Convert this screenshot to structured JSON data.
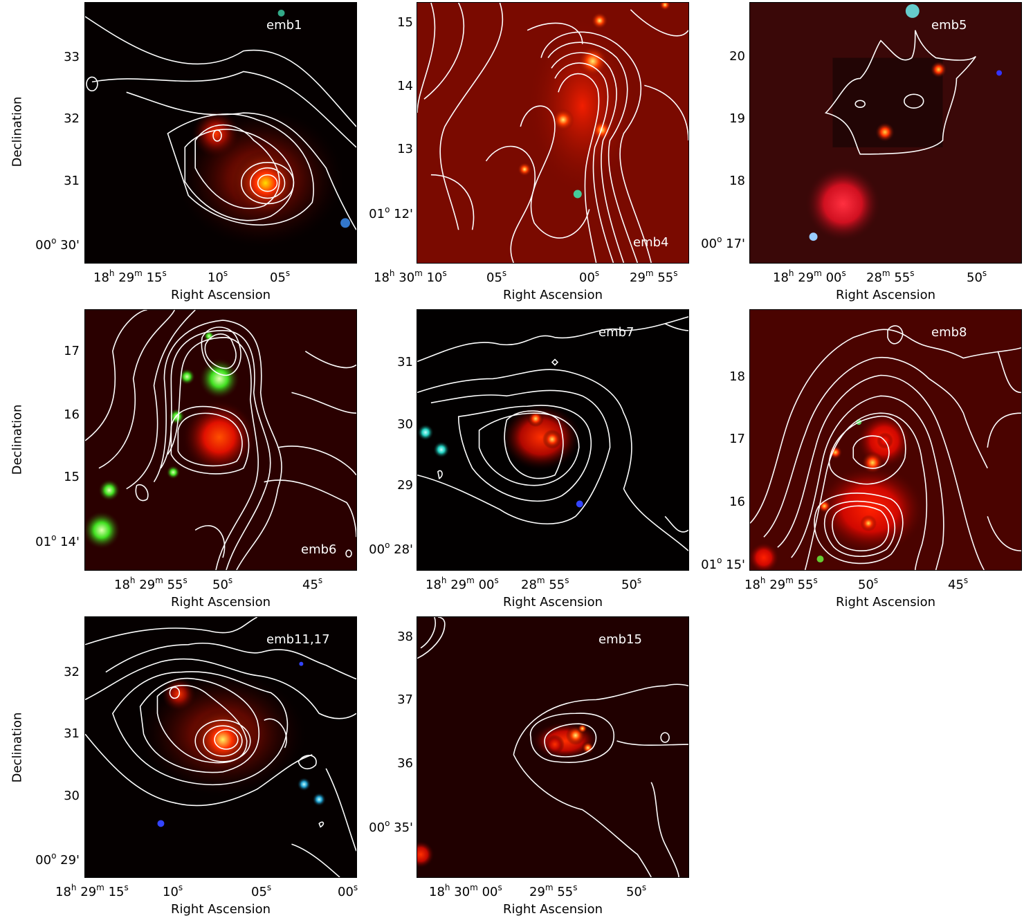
{
  "axis": {
    "xlabel": "Right Ascension",
    "ylabel": "Declination"
  },
  "panels": [
    {
      "label": "emb1",
      "bg": "#050000",
      "yticks": [
        "33",
        "32",
        "31",
        "00° 30'"
      ],
      "xticks": [
        "18h 29m 15s",
        "10s",
        "05s"
      ]
    },
    {
      "label": "emb4",
      "bg": "#7a0a00",
      "yticks": [
        "15",
        "14",
        "13",
        "01° 12'"
      ],
      "xticks": [
        "18h 30m 10s",
        "05s",
        "00s",
        "29m 55s"
      ]
    },
    {
      "label": "emb5",
      "bg": "#3a0808",
      "yticks": [
        "20",
        "19",
        "18",
        "00° 17'"
      ],
      "xticks": [
        "18h 29m 00s",
        "28m 55s",
        "50s"
      ]
    },
    {
      "label": "emb6",
      "bg": "#2a0000",
      "yticks": [
        "17",
        "16",
        "15",
        "01° 14'"
      ],
      "xticks": [
        "18h 29m 55s",
        "50s",
        "45s"
      ]
    },
    {
      "label": "emb7",
      "bg": "#020000",
      "yticks": [
        "31",
        "30",
        "29",
        "00° 28'"
      ],
      "xticks": [
        "18h 29m 00s",
        "28m 55s",
        "50s"
      ]
    },
    {
      "label": "emb8",
      "bg": "#4a0300",
      "yticks": [
        "18",
        "17",
        "16",
        "01° 15'"
      ],
      "xticks": [
        "18h 29m 55s",
        "50s",
        "45s"
      ]
    },
    {
      "label": "emb11,17",
      "bg": "#050000",
      "yticks": [
        "32",
        "31",
        "30",
        "00° 29'"
      ],
      "xticks": [
        "18h 29m 15s",
        "10s",
        "05s",
        "00s"
      ]
    },
    {
      "label": "emb15",
      "bg": "#200000",
      "yticks": [
        "38",
        "37",
        "36",
        "00° 35'"
      ],
      "xticks": [
        "18h 30m 00s",
        "29m 55s",
        "50s"
      ]
    }
  ]
}
